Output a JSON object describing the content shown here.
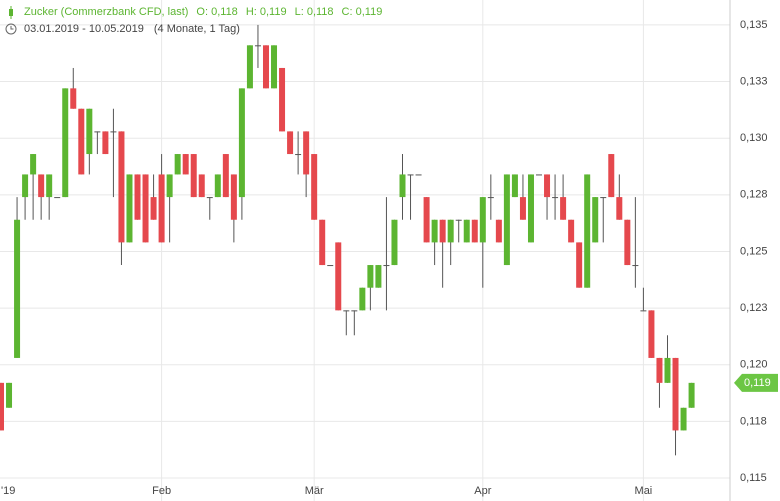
{
  "chart_data": {
    "type": "candlestick",
    "title": "Zucker (Commerzbank CFD, last)",
    "ohlc_labels": [
      "O: 0,118",
      "H: 0,119",
      "L: 0,118",
      "C: 0,119"
    ],
    "date_range": "03.01.2019 - 10.05.2019",
    "period": "(4 Monate, 1 Tag)",
    "up_color": "#5cb531",
    "down_color": "#e5484d",
    "grid": true,
    "ylim": [
      0.115,
      0.1361
    ],
    "yticks": [
      {
        "value": 0.135,
        "label": "0,135"
      },
      {
        "value": 0.1325,
        "label": "0,133"
      },
      {
        "value": 0.13,
        "label": "0,130"
      },
      {
        "value": 0.1275,
        "label": "0,128"
      },
      {
        "value": 0.125,
        "label": "0,125"
      },
      {
        "value": 0.1225,
        "label": "0,123"
      },
      {
        "value": 0.12,
        "label": "0,120"
      },
      {
        "value": 0.1175,
        "label": "0,118"
      },
      {
        "value": 0.115,
        "label": "0,115"
      }
    ],
    "last_price": {
      "value": 0.1192,
      "label": "0,119"
    },
    "categories": [
      "'19",
      null,
      null,
      null,
      null,
      null,
      null,
      null,
      null,
      null,
      null,
      null,
      null,
      null,
      null,
      null,
      null,
      null,
      null,
      null,
      "Feb",
      null,
      null,
      null,
      null,
      null,
      null,
      null,
      null,
      null,
      null,
      null,
      null,
      null,
      null,
      null,
      null,
      null,
      null,
      "Mär",
      null,
      null,
      null,
      null,
      null,
      null,
      null,
      null,
      null,
      null,
      null,
      null,
      null,
      null,
      null,
      null,
      null,
      null,
      null,
      null,
      "Apr",
      null,
      null,
      null,
      null,
      null,
      null,
      null,
      null,
      null,
      null,
      null,
      null,
      null,
      null,
      null,
      null,
      null,
      null,
      null,
      "Mai",
      null,
      null,
      null,
      null,
      null,
      null
    ],
    "open": [
      0.1192,
      0.1181,
      0.1203,
      0.1274,
      0.1284,
      0.1284,
      0.1274,
      0.1274,
      0.1274,
      0.1322,
      0.1313,
      0.1293,
      0.1303,
      0.1303,
      0.1303,
      0.1303,
      0.1254,
      0.1284,
      0.1284,
      0.1274,
      0.1284,
      0.1274,
      0.1284,
      0.1293,
      0.1293,
      0.1284,
      0.1274,
      0.1274,
      0.1293,
      0.1284,
      0.1274,
      0.1322,
      0.1341,
      0.1341,
      0.1322,
      0.1331,
      0.1303,
      0.1293,
      0.1303,
      0.1293,
      0.1264,
      0.1244,
      0.1254,
      0.1224,
      0.1224,
      0.1224,
      0.1234,
      0.1234,
      0.1244,
      0.1244,
      0.1274,
      0.1284,
      0.1284,
      0.1274,
      0.1254,
      0.1264,
      0.1254,
      0.1264,
      0.1254,
      0.1264,
      0.1254,
      0.1274,
      0.1264,
      0.1244,
      0.1274,
      0.1274,
      0.1254,
      0.1284,
      0.1284,
      0.1274,
      0.1274,
      0.1264,
      0.1254,
      0.1234,
      0.1254,
      0.1274,
      0.1293,
      0.1274,
      0.1264,
      0.1244,
      0.1224,
      0.1224,
      0.1203,
      0.1192,
      0.1203,
      0.1171,
      0.1181
    ],
    "high": [
      0.1192,
      0.1192,
      0.1274,
      0.1284,
      0.1293,
      0.1284,
      0.1284,
      0.1274,
      0.1322,
      0.1331,
      0.1313,
      0.1313,
      0.1303,
      0.1303,
      0.1313,
      0.1303,
      0.1284,
      0.1284,
      0.1284,
      0.1284,
      0.1293,
      0.1284,
      0.1293,
      0.1293,
      0.1293,
      0.1284,
      0.1274,
      0.1284,
      0.1293,
      0.1284,
      0.1322,
      0.1341,
      0.135,
      0.1341,
      0.1341,
      0.1331,
      0.1303,
      0.1303,
      0.1303,
      0.1293,
      0.1264,
      0.1244,
      0.1254,
      0.1224,
      0.1224,
      0.1234,
      0.1244,
      0.1244,
      0.1274,
      0.1264,
      0.1293,
      0.1284,
      0.1284,
      0.1274,
      0.1264,
      0.1264,
      0.1264,
      0.1264,
      0.1264,
      0.1264,
      0.1274,
      0.1284,
      0.1264,
      0.1284,
      0.1284,
      0.1284,
      0.1284,
      0.1284,
      0.1284,
      0.1284,
      0.1284,
      0.1264,
      0.1254,
      0.1284,
      0.1274,
      0.1274,
      0.1293,
      0.1284,
      0.1264,
      0.1274,
      0.1234,
      0.1224,
      0.1203,
      0.1213,
      0.1203,
      0.1181,
      0.1192
    ],
    "low": [
      0.1171,
      0.1181,
      0.1203,
      0.1264,
      0.1264,
      0.1264,
      0.1264,
      0.1274,
      0.1274,
      0.1313,
      0.1284,
      0.1284,
      0.1293,
      0.1293,
      0.1274,
      0.1244,
      0.1254,
      0.1264,
      0.1254,
      0.1264,
      0.1254,
      0.1254,
      0.1284,
      0.1284,
      0.1274,
      0.1274,
      0.1264,
      0.1274,
      0.1274,
      0.1254,
      0.1264,
      0.1322,
      0.1331,
      0.1322,
      0.1322,
      0.1303,
      0.1293,
      0.1284,
      0.1274,
      0.1264,
      0.1244,
      0.1244,
      0.1224,
      0.1213,
      0.1213,
      0.1224,
      0.1224,
      0.1234,
      0.1224,
      0.1244,
      0.1264,
      0.1264,
      0.1284,
      0.1254,
      0.1244,
      0.1234,
      0.1244,
      0.1254,
      0.1254,
      0.1254,
      0.1234,
      0.1264,
      0.1254,
      0.1244,
      0.1274,
      0.1264,
      0.1254,
      0.1284,
      0.1264,
      0.1264,
      0.1264,
      0.1254,
      0.1234,
      0.1234,
      0.1254,
      0.1254,
      0.1274,
      0.1264,
      0.1244,
      0.1234,
      0.1224,
      0.1203,
      0.1181,
      0.1192,
      0.116,
      0.1171,
      0.1181
    ],
    "close": [
      0.1171,
      0.1192,
      0.1264,
      0.1284,
      0.1293,
      0.1274,
      0.1284,
      0.1274,
      0.1322,
      0.1313,
      0.1284,
      0.1313,
      0.1303,
      0.1293,
      0.1303,
      0.1254,
      0.1284,
      0.1264,
      0.1254,
      0.1264,
      0.1254,
      0.1284,
      0.1293,
      0.1284,
      0.1274,
      0.1274,
      0.1274,
      0.1284,
      0.1274,
      0.1264,
      0.1322,
      0.1341,
      0.1341,
      0.1322,
      0.1341,
      0.1303,
      0.1293,
      0.1293,
      0.1284,
      0.1264,
      0.1244,
      0.1244,
      0.1224,
      0.1224,
      0.1224,
      0.1234,
      0.1244,
      0.1244,
      0.1244,
      0.1264,
      0.1284,
      0.1284,
      0.1284,
      0.1254,
      0.1264,
      0.1254,
      0.1264,
      0.1264,
      0.1264,
      0.1254,
      0.1274,
      0.1274,
      0.1254,
      0.1284,
      0.1284,
      0.1264,
      0.1284,
      0.1284,
      0.1274,
      0.1274,
      0.1264,
      0.1254,
      0.1234,
      0.1284,
      0.1274,
      0.1274,
      0.1274,
      0.1264,
      0.1244,
      0.1244,
      0.1224,
      0.1203,
      0.1192,
      0.1203,
      0.1171,
      0.1181,
      0.1192
    ]
  }
}
